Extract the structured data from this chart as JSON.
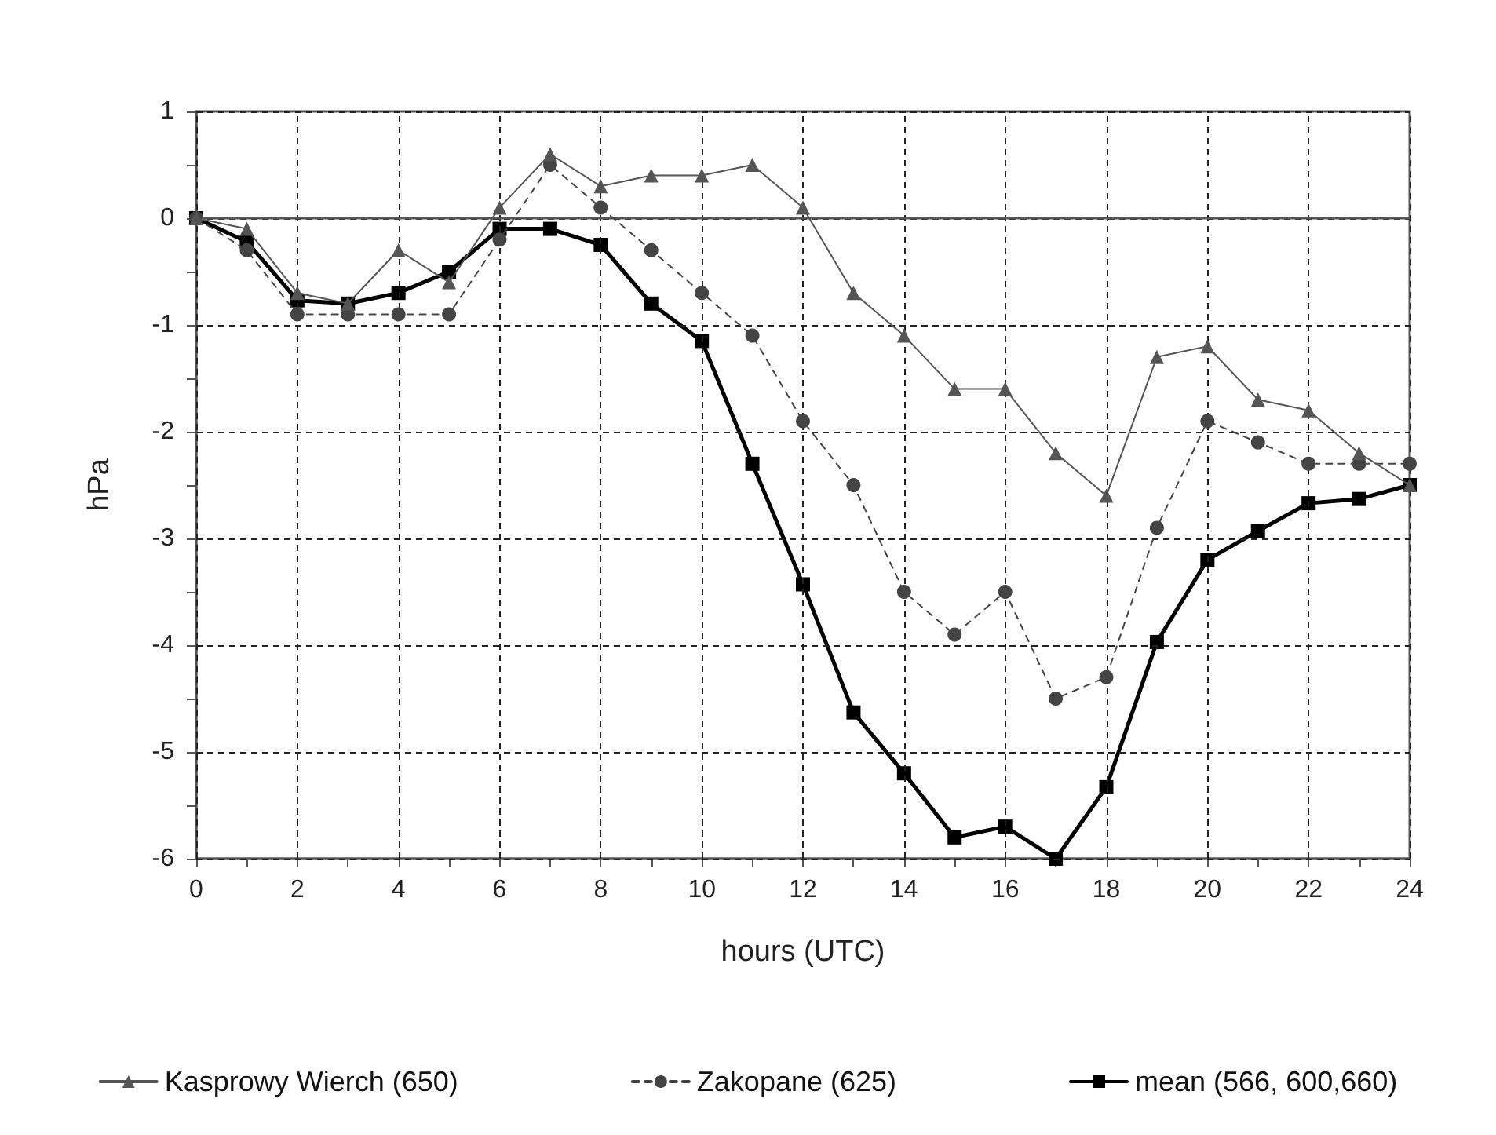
{
  "chart_data": {
    "type": "line",
    "xlabel": "hours (UTC)",
    "ylabel": "hPa",
    "x": [
      0,
      1,
      2,
      3,
      4,
      5,
      6,
      7,
      8,
      9,
      10,
      11,
      12,
      13,
      14,
      15,
      16,
      17,
      18,
      19,
      20,
      21,
      22,
      23,
      24
    ],
    "series": [
      {
        "name": "Kasprowy Wierch (650)",
        "color": "#555555",
        "marker": "triangle",
        "line_style": "solid",
        "values": [
          0,
          -0.1,
          -0.7,
          -0.8,
          -0.3,
          -0.6,
          0.1,
          0.6,
          0.3,
          0.4,
          0.4,
          0.5,
          0.1,
          -0.7,
          -1.1,
          -1.6,
          -1.6,
          -2.2,
          -2.6,
          -1.3,
          -1.2,
          -1.7,
          -1.8,
          -2.2,
          -2.5
        ]
      },
      {
        "name": "Zakopane (625)",
        "color": "#444444",
        "marker": "circle",
        "line_style": "dashed",
        "values": [
          0,
          -0.3,
          -0.9,
          -0.9,
          -0.9,
          -0.9,
          -0.2,
          0.5,
          0.1,
          -0.3,
          -0.7,
          -1.1,
          -1.9,
          -2.5,
          -3.5,
          -3.9,
          -3.5,
          -4.5,
          -4.3,
          -2.9,
          -1.9,
          -2.1,
          -2.3,
          -2.3,
          -2.3
        ]
      },
      {
        "name": "mean (566, 600,660)",
        "color": "#000000",
        "marker": "square",
        "line_style": "solid",
        "values": [
          0,
          -0.22,
          -0.77,
          -0.8,
          -0.7,
          -0.5,
          -0.1,
          -0.1,
          -0.25,
          -0.8,
          -1.15,
          -2.3,
          -3.43,
          -4.63,
          -5.2,
          -5.8,
          -5.7,
          -6.0,
          -5.33,
          -3.97,
          -3.2,
          -2.93,
          -2.67,
          -2.63,
          -2.5
        ]
      }
    ],
    "xlim": [
      0,
      24
    ],
    "xticks": [
      0,
      {
        "value": 1,
        "label": null
      },
      2,
      {
        "value": 3,
        "label": null
      },
      4,
      {
        "value": 5,
        "label": null
      },
      6,
      {
        "value": 7,
        "label": null
      },
      8,
      {
        "value": 9,
        "label": null
      },
      10,
      {
        "value": 11,
        "label": null
      },
      12,
      {
        "value": 13,
        "label": null
      },
      14,
      {
        "value": 15,
        "label": null
      },
      16,
      {
        "value": 17,
        "label": null
      },
      18,
      {
        "value": 19,
        "label": null
      },
      20,
      {
        "value": 21,
        "label": null
      },
      22,
      {
        "value": 23,
        "label": null
      },
      24
    ],
    "ylim": [
      -6,
      1
    ],
    "yticks": [
      -6,
      {
        "value": -5.5,
        "label": null
      },
      -5,
      {
        "value": -4.5,
        "label": null
      },
      -4,
      {
        "value": -3.5,
        "label": null
      },
      -3,
      {
        "value": -2.5,
        "label": null
      },
      -2,
      {
        "value": -1.5,
        "label": null
      },
      -1,
      {
        "value": -0.5,
        "label": null
      },
      0,
      {
        "value": 0.5,
        "label": null
      },
      1
    ],
    "ref_lines": [
      {
        "axis": "y",
        "value": 0,
        "color": "#555555",
        "line_style": "solid"
      }
    ],
    "grid": true,
    "legend": "bottom"
  }
}
